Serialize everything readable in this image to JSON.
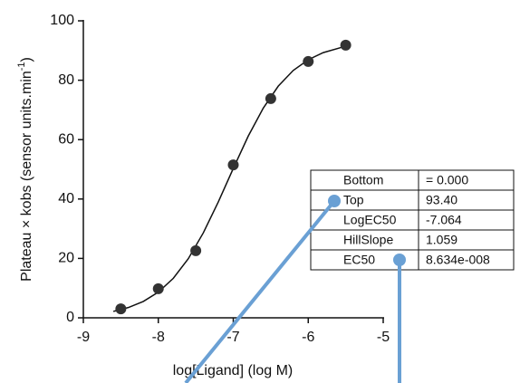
{
  "chart_data": {
    "type": "scatter",
    "xlabel": "log[Ligand] (log M)",
    "ylabel": "Plateau × kobs (sensor units.min",
    "ylabel_superscript": "-1",
    "ylabel_end": ")",
    "x": [
      -8.5,
      -8,
      -7.5,
      -7,
      -6.5,
      -6,
      -5.5
    ],
    "series": [
      {
        "color": "#333333",
        "values": [
          3,
          9.8,
          22.6,
          51.5,
          73.8,
          86.3,
          91.8
        ]
      }
    ],
    "fit": {
      "color": "#111111",
      "x": [
        -8.6,
        -8.4,
        -8.2,
        -8.0,
        -7.8,
        -7.6,
        -7.4,
        -7.2,
        -7.0,
        -6.8,
        -6.6,
        -6.4,
        -6.2,
        -6.0,
        -5.8,
        -5.55
      ],
      "values": [
        2.15,
        3.46,
        5.51,
        8.65,
        13.3,
        19.9,
        28.6,
        39.0,
        50.3,
        61.2,
        70.6,
        78.0,
        83.3,
        86.9,
        89.3,
        91.1
      ]
    },
    "xlim": [
      -9,
      -5
    ],
    "xticks": [
      -9,
      -8,
      -7,
      -6,
      -5
    ],
    "ylim": [
      0,
      100
    ],
    "yticks": [
      0,
      20,
      40,
      60,
      80,
      100
    ]
  },
  "table": {
    "rows": [
      [
        "Bottom",
        "= 0.000"
      ],
      [
        "Top",
        "93.40"
      ],
      [
        "LogEC50",
        "-7.064"
      ],
      [
        "HillSlope",
        "1.059"
      ],
      [
        "EC50",
        "8.634e-008"
      ]
    ]
  }
}
